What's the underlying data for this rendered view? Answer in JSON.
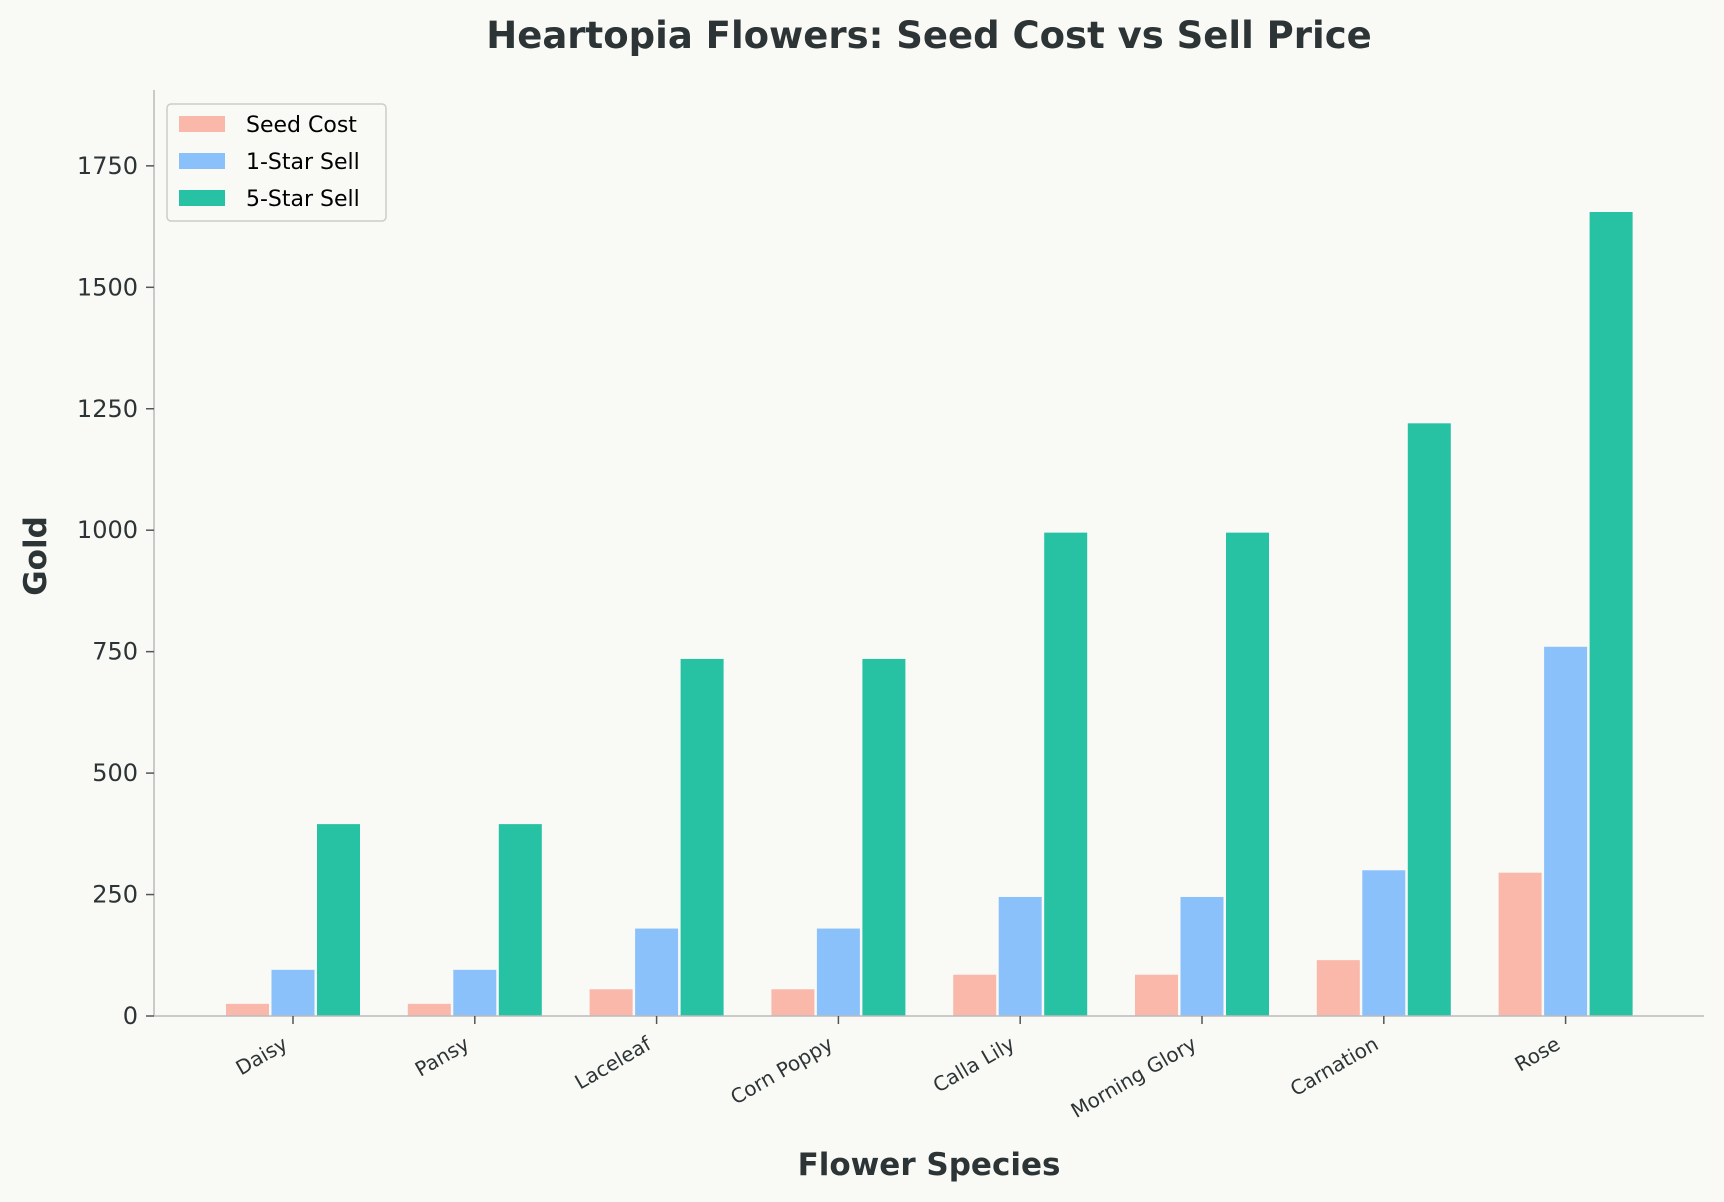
{
  "chart_data": {
    "type": "bar",
    "title": "Heartopia Flowers: Seed Cost vs Sell Price",
    "xlabel": "Flower Species",
    "ylabel": "Gold",
    "categories": [
      "Daisy",
      "Pansy",
      "Laceleaf",
      "Corn Poppy",
      "Calla Lily",
      "Morning Glory",
      "Carnation",
      "Rose"
    ],
    "series": [
      {
        "name": "Seed Cost",
        "color": "#fab8aa",
        "values": [
          25,
          25,
          55,
          55,
          85,
          85,
          115,
          295
        ]
      },
      {
        "name": "1-Star Sell",
        "color": "#8bc1fb",
        "values": [
          95,
          95,
          180,
          180,
          245,
          245,
          300,
          760
        ]
      },
      {
        "name": "5-Star Sell",
        "color": "#27c2a4",
        "values": [
          395,
          395,
          735,
          735,
          995,
          995,
          1220,
          1655
        ]
      }
    ],
    "ylim": [
      0,
      1900
    ],
    "yticks": [
      0,
      250,
      500,
      750,
      1000,
      1250,
      1500,
      1750
    ],
    "legend_position": "top-left",
    "grid": false
  }
}
